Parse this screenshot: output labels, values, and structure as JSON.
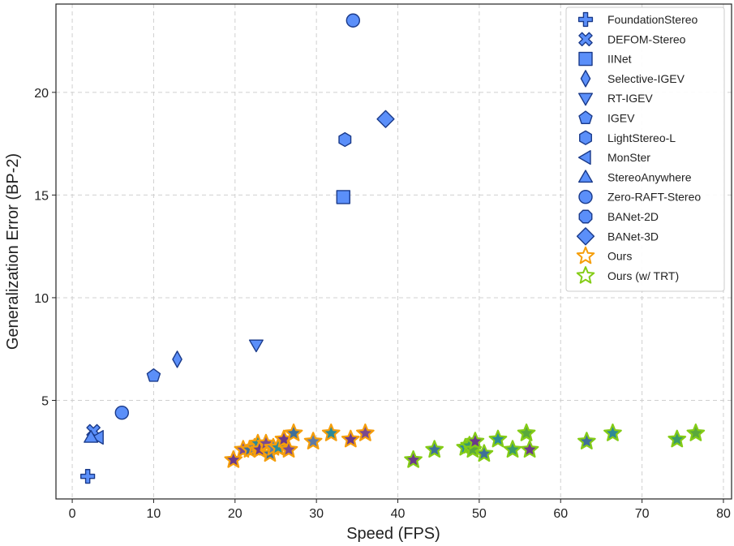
{
  "chart_data": {
    "type": "scatter",
    "xlabel": "Speed (FPS)",
    "ylabel": "Generalization Error (BP-2)",
    "xlim": [
      -2,
      81
    ],
    "ylim": [
      0.2,
      24.3
    ],
    "xticks": [
      0,
      10,
      20,
      30,
      40,
      50,
      60,
      70,
      80
    ],
    "yticks": [
      5,
      10,
      15,
      20
    ],
    "grid": true,
    "legend_position": "top-right",
    "colors": {
      "baseline_fill": "#5b8ff9",
      "baseline_edge": "#1a3a8a",
      "ours_edge": "#f59e0b",
      "ours_trt_edge": "#84cc16",
      "grid": "#d0d0d0"
    },
    "series": [
      {
        "name": "FoundationStereo",
        "marker": "plus",
        "points": [
          [
            1.9,
            1.3
          ]
        ]
      },
      {
        "name": "DEFOM-Stereo",
        "marker": "x",
        "points": [
          [
            2.6,
            3.5
          ]
        ]
      },
      {
        "name": "IINet",
        "marker": "square",
        "points": [
          [
            33.3,
            14.9
          ]
        ]
      },
      {
        "name": "Selective-IGEV",
        "marker": "thin-diamond",
        "points": [
          [
            12.9,
            7.0
          ]
        ]
      },
      {
        "name": "RT-IGEV",
        "marker": "triangle-down",
        "points": [
          [
            22.6,
            7.7
          ]
        ]
      },
      {
        "name": "IGEV",
        "marker": "pentagon",
        "points": [
          [
            10.0,
            6.2
          ]
        ]
      },
      {
        "name": "LightStereo-L",
        "marker": "hexagon",
        "points": [
          [
            33.5,
            17.7
          ]
        ]
      },
      {
        "name": "MonSter",
        "marker": "triangle-left",
        "points": [
          [
            3.2,
            3.2
          ]
        ]
      },
      {
        "name": "StereoAnywhere",
        "marker": "triangle-up",
        "points": [
          [
            2.3,
            3.2
          ]
        ]
      },
      {
        "name": "Zero-RAFT-Stereo",
        "marker": "circle",
        "points": [
          [
            6.1,
            4.4
          ],
          [
            34.5,
            23.5
          ]
        ]
      },
      {
        "name": "BANet-2D",
        "marker": "octagon",
        "points": []
      },
      {
        "name": "BANet-3D",
        "marker": "diamond",
        "points": [
          [
            38.5,
            18.7
          ]
        ]
      },
      {
        "name": "Ours",
        "marker": "star",
        "points": [
          [
            19.8,
            2.1
          ],
          [
            21.0,
            2.6
          ],
          [
            21.8,
            2.6
          ],
          [
            22.4,
            2.7
          ],
          [
            22.8,
            2.9
          ],
          [
            23.0,
            2.6
          ],
          [
            23.8,
            2.9
          ],
          [
            24.3,
            2.4
          ],
          [
            24.7,
            2.7
          ],
          [
            25.3,
            2.7
          ],
          [
            26.0,
            3.1
          ],
          [
            26.6,
            2.6
          ],
          [
            27.2,
            3.4
          ],
          [
            29.6,
            3.0
          ],
          [
            31.8,
            3.4
          ],
          [
            34.2,
            3.1
          ],
          [
            36.0,
            3.4
          ]
        ]
      },
      {
        "name": "Ours (w/ TRT)",
        "marker": "star",
        "points": [
          [
            41.9,
            2.1
          ],
          [
            44.5,
            2.6
          ],
          [
            48.3,
            2.7
          ],
          [
            48.8,
            2.8
          ],
          [
            49.2,
            2.6
          ],
          [
            49.5,
            3.0
          ],
          [
            50.6,
            2.4
          ],
          [
            52.3,
            3.1
          ],
          [
            54.1,
            2.6
          ],
          [
            55.8,
            3.4
          ],
          [
            56.2,
            2.6
          ],
          [
            63.2,
            3.0
          ],
          [
            66.4,
            3.4
          ],
          [
            74.3,
            3.1
          ],
          [
            76.6,
            3.4
          ]
        ]
      }
    ]
  }
}
